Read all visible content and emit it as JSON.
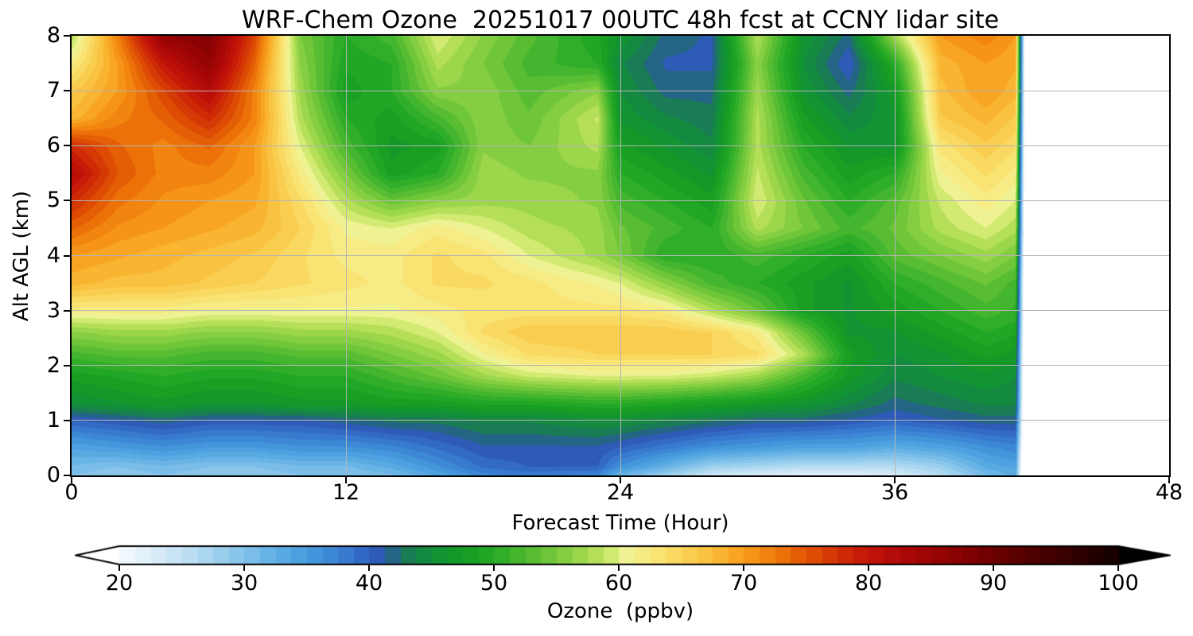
{
  "chart_data": {
    "type": "heatmap",
    "title": "WRF-Chem Ozone  20251017 00UTC 48h fcst at CCNY lidar site",
    "xlabel": "Forecast Time (Hour)",
    "ylabel": "Alt AGL (km)",
    "xlim": [
      0,
      48
    ],
    "ylim": [
      0,
      8
    ],
    "xticks": [
      0,
      12,
      24,
      36,
      48
    ],
    "yticks": [
      0,
      1,
      2,
      3,
      4,
      5,
      6,
      7,
      8
    ],
    "grid": {
      "x": [
        12,
        24,
        36
      ],
      "y": [
        1,
        2,
        3,
        4,
        5,
        6,
        7
      ],
      "color": "#b4b4b4"
    },
    "spine_color": "#000000",
    "background_color": "#ffffff",
    "colorbar": {
      "label": "Ozone  (ppbv)",
      "ticks": [
        20,
        30,
        40,
        50,
        60,
        70,
        80,
        90,
        100
      ],
      "vmin": 17.5,
      "vmax": 102.5,
      "level_step": 1.25,
      "extend": "both",
      "under_color": "#ffffff",
      "over_color": "#000000"
    },
    "colormap_stops": [
      [
        17.5,
        "#ffffff"
      ],
      [
        20,
        "#f7fbff"
      ],
      [
        22.5,
        "#ddeef9"
      ],
      [
        25,
        "#c3e2f4"
      ],
      [
        27.5,
        "#a3d3ef"
      ],
      [
        30,
        "#82c2ea"
      ],
      [
        32.5,
        "#60afe4"
      ],
      [
        35,
        "#479cde"
      ],
      [
        37.5,
        "#3a82d2"
      ],
      [
        40,
        "#2f62c2"
      ],
      [
        41.25,
        "#2b54a8"
      ],
      [
        42.5,
        "#1e7560"
      ],
      [
        43.75,
        "#168348"
      ],
      [
        45,
        "#12903a"
      ],
      [
        47.5,
        "#149c22"
      ],
      [
        50,
        "#27aa27"
      ],
      [
        52.5,
        "#4eb930"
      ],
      [
        55,
        "#7aca3c"
      ],
      [
        57.5,
        "#a8da50"
      ],
      [
        59,
        "#c8e766"
      ],
      [
        60.5,
        "#eef395"
      ],
      [
        62.5,
        "#f9e87c"
      ],
      [
        65,
        "#f9d458"
      ],
      [
        67.5,
        "#f9bc38"
      ],
      [
        70,
        "#f99d1d"
      ],
      [
        72.5,
        "#ef7b0b"
      ],
      [
        75,
        "#e15404"
      ],
      [
        77.5,
        "#d13106"
      ],
      [
        80,
        "#c31408"
      ],
      [
        82.5,
        "#af0a08"
      ],
      [
        85,
        "#9b0404"
      ],
      [
        87.5,
        "#850202"
      ],
      [
        90,
        "#6d0000"
      ],
      [
        92.5,
        "#550000"
      ],
      [
        95,
        "#3d0000"
      ],
      [
        97.5,
        "#290000"
      ],
      [
        100,
        "#140000"
      ],
      [
        102.5,
        "#000000"
      ]
    ],
    "x_hours": [
      0,
      2,
      4,
      6,
      8,
      10,
      12,
      14,
      16,
      18,
      20,
      23,
      24,
      26,
      28,
      30,
      32,
      34,
      36,
      38,
      40,
      41.3,
      41.8,
      48
    ],
    "y_km": [
      0,
      0.15,
      0.5,
      1,
      1.3,
      1.8,
      2.2,
      2.6,
      3,
      3.5,
      4,
      4.5,
      5,
      5.5,
      6,
      6.5,
      7,
      7.5,
      8
    ],
    "values_ppbv_by_alt": [
      [
        30,
        29,
        30,
        29,
        29,
        30,
        30,
        31,
        34,
        37,
        38,
        37,
        32,
        28,
        24,
        23,
        22,
        22,
        23,
        26,
        31,
        33,
        5,
        5
      ],
      [
        31,
        30,
        31,
        30,
        30,
        31,
        31,
        33,
        36,
        39,
        40,
        40,
        36,
        32,
        28,
        27,
        26,
        26,
        26,
        28,
        33,
        34,
        5,
        5
      ],
      [
        34,
        35,
        36,
        35,
        35,
        36,
        36,
        37,
        39,
        41,
        41,
        41,
        40,
        38,
        36,
        35,
        34,
        34,
        33,
        34,
        36,
        37,
        5,
        5
      ],
      [
        40,
        41,
        42,
        41,
        41,
        41,
        42,
        43,
        43,
        44,
        44,
        45,
        45,
        44,
        43,
        42,
        42,
        41,
        40,
        41,
        42,
        42,
        5,
        5
      ],
      [
        45,
        46,
        47,
        46,
        46,
        47,
        47,
        48,
        48,
        49,
        49,
        50,
        50,
        49,
        48,
        47,
        46,
        44,
        42,
        43,
        44,
        44,
        5,
        5
      ],
      [
        48,
        49,
        50,
        49,
        49,
        50,
        50,
        52,
        54,
        57,
        59,
        60,
        60,
        60,
        59,
        57,
        52,
        47,
        44,
        45,
        46,
        45,
        5,
        5
      ],
      [
        52,
        53,
        53,
        52,
        52,
        53,
        53,
        55,
        57,
        61,
        64,
        65,
        65,
        65,
        65,
        64,
        58,
        48,
        45,
        46,
        48,
        47,
        5,
        5
      ],
      [
        56,
        57,
        57,
        56,
        56,
        57,
        57,
        58,
        60,
        64,
        66,
        66,
        66,
        66,
        65,
        62,
        54,
        46,
        46,
        48,
        50,
        49,
        5,
        5
      ],
      [
        62,
        62,
        62,
        61,
        61,
        61,
        61,
        61,
        62,
        63,
        63,
        63,
        63,
        62,
        58,
        54,
        48,
        46,
        48,
        50,
        52,
        51,
        5,
        5
      ],
      [
        68,
        67,
        67,
        66,
        65,
        64,
        63,
        62,
        64,
        64,
        63,
        61,
        60,
        56,
        52,
        50,
        48,
        46,
        50,
        52,
        54,
        52,
        5,
        5
      ],
      [
        70,
        69,
        68,
        67,
        66,
        64,
        62,
        62,
        64,
        63,
        60,
        57,
        55,
        50,
        50,
        52,
        50,
        48,
        53,
        55,
        57,
        55,
        5,
        5
      ],
      [
        74,
        71,
        70,
        69,
        68,
        65,
        61,
        60,
        62,
        60,
        58,
        57,
        54,
        52,
        50,
        58,
        55,
        52,
        54,
        58,
        60,
        58,
        5,
        5
      ],
      [
        78,
        73,
        71,
        70,
        69,
        64,
        58,
        54,
        56,
        57,
        57,
        56,
        52,
        50,
        48,
        60,
        54,
        50,
        53,
        59,
        62,
        60,
        5,
        5
      ],
      [
        82,
        75,
        72,
        72,
        70,
        62,
        55,
        48,
        50,
        57,
        56,
        56,
        50,
        48,
        46,
        59,
        52,
        48,
        50,
        61,
        64,
        62,
        5,
        5
      ],
      [
        78,
        74,
        72,
        74,
        70,
        60,
        52,
        47,
        48,
        56,
        55,
        58,
        48,
        46,
        44,
        58,
        50,
        46,
        46,
        63,
        66,
        64,
        5,
        5
      ],
      [
        68,
        72,
        74,
        78,
        72,
        58,
        50,
        48,
        52,
        56,
        54,
        59,
        46,
        44,
        43,
        58,
        48,
        44,
        46,
        66,
        68,
        66,
        5,
        5
      ],
      [
        66,
        70,
        76,
        82,
        72,
        57,
        48,
        50,
        56,
        56,
        53,
        56,
        45,
        42,
        42,
        57,
        46,
        42,
        47,
        67,
        70,
        68,
        5,
        5
      ],
      [
        62,
        70,
        80,
        86,
        74,
        56,
        49,
        50,
        58,
        55,
        52,
        50,
        44,
        41,
        41,
        56,
        45,
        40,
        50,
        68,
        70,
        69,
        5,
        5
      ],
      [
        58,
        72,
        86,
        88,
        76,
        55,
        50,
        52,
        60,
        56,
        53,
        49,
        46,
        42,
        41,
        58,
        46,
        42,
        57,
        70,
        72,
        70,
        5,
        5
      ]
    ]
  }
}
